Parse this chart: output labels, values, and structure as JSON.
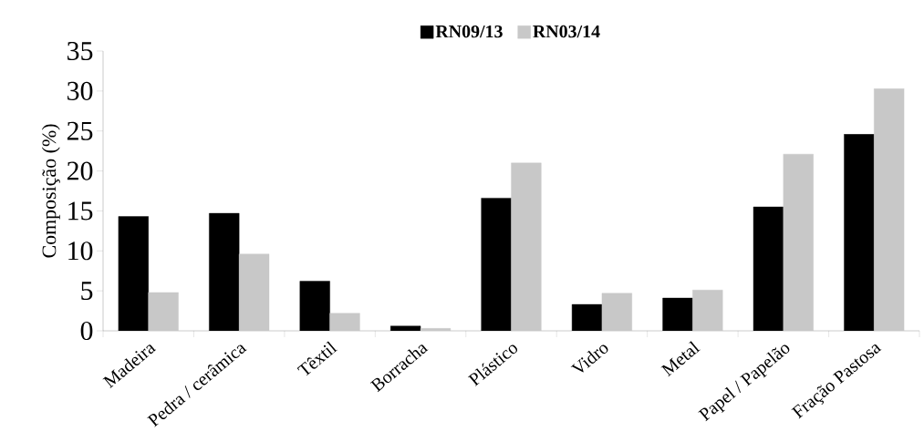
{
  "chart_data": {
    "type": "bar",
    "ylabel": "Composição (%)",
    "categories": [
      "Madeira",
      "Pedra / cerâmica",
      "Têxtil",
      "Borracha",
      "Plástico",
      "Vidro",
      "Metal",
      "Papel / Papelão",
      "Fração Pastosa"
    ],
    "series": [
      {
        "name": "RN09/13",
        "color": "#000000",
        "values": [
          14.3,
          14.7,
          6.2,
          0.6,
          16.6,
          3.3,
          4.1,
          15.5,
          24.6
        ]
      },
      {
        "name": "RN03/14",
        "color": "#c8c8c8",
        "values": [
          4.8,
          9.6,
          2.2,
          0.3,
          21.0,
          4.7,
          5.1,
          22.1,
          30.3
        ]
      }
    ],
    "ylim": [
      0,
      35
    ],
    "yticks": [
      0,
      5,
      10,
      15,
      20,
      25,
      30,
      35
    ],
    "legend": "top"
  }
}
